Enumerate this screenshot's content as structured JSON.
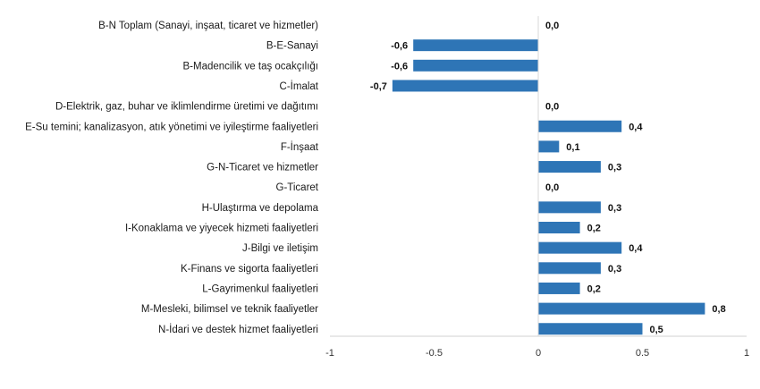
{
  "chart_data": {
    "type": "bar",
    "orientation": "horizontal",
    "categories": [
      "B-N Toplam (Sanayi, inşaat, ticaret ve hizmetler)",
      "B-E-Sanayi",
      "B-Madencilik ve taş ocakçılığı",
      "C-İmalat",
      "D-Elektrik, gaz, buhar ve iklimlendirme üretimi ve dağıtımı",
      "E-Su temini; kanalizasyon, atık yönetimi ve iyileştirme faaliyetleri",
      "F-İnşaat",
      "G-N-Ticaret ve hizmetler",
      "G-Ticaret",
      "H-Ulaştırma ve depolama",
      "I-Konaklama ve yiyecek hizmeti faaliyetleri",
      "J-Bilgi ve iletişim",
      "K-Finans ve sigorta faaliyetleri",
      "L-Gayrimenkul faaliyetleri",
      "M-Mesleki, bilimsel ve teknik faaliyetler",
      "N-İdari ve destek hizmet faaliyetleri"
    ],
    "values": [
      0.0,
      -0.6,
      -0.6,
      -0.7,
      0.0,
      0.4,
      0.1,
      0.3,
      0.0,
      0.3,
      0.2,
      0.4,
      0.3,
      0.2,
      0.8,
      0.5
    ],
    "value_labels": [
      "0,0",
      "-0,6",
      "-0,6",
      "-0,7",
      "0,0",
      "0,4",
      "0,1",
      "0,3",
      "0,0",
      "0,3",
      "0,2",
      "0,4",
      "0,3",
      "0,2",
      "0,8",
      "0,5"
    ],
    "xlim": [
      -1,
      1
    ],
    "xticks": [
      -1,
      -0.5,
      0,
      0.5,
      1
    ],
    "xtick_labels": [
      "-1",
      "-0.5",
      "0",
      "0.5",
      "1"
    ],
    "grid": false,
    "bar_color": "#2e75b6",
    "title": "",
    "xlabel": "",
    "ylabel": ""
  }
}
